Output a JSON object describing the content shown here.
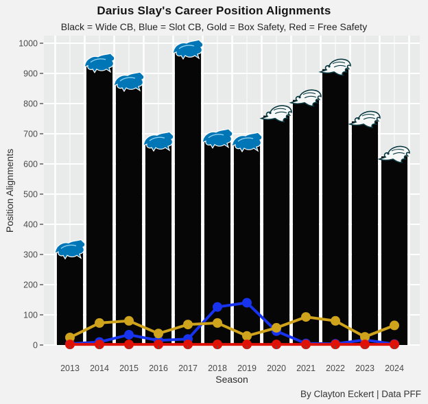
{
  "header": {
    "title": "Darius Slay's Career Position Alignments",
    "subtitle": "Black = Wide CB, Blue = Slot CB, Gold = Box Safety, Red = Free Safety"
  },
  "caption": "By Clayton Eckert | Data PFF",
  "colors": {
    "page_bg": "#f2f2f2",
    "panel_bg": "#e9eaea",
    "gridline": "#ffffff",
    "bar_black": "#060606",
    "slot_blue": "#1733EE",
    "box_gold": "#CFA31C",
    "free_red": "#E01206",
    "lions_blue": "#0076b6",
    "eagles_green": "#0a3940",
    "eagles_white": "#f6f8f8",
    "axis_text": "#4a4a4a"
  },
  "chart_data": {
    "type": "bar",
    "title": "Darius Slay's Career Position Alignments",
    "subtitle": "Black = Wide CB, Blue = Slot CB, Gold = Box Safety, Red = Free Safety",
    "xlabel": "Season",
    "ylabel": "Position Alignments",
    "ylim": [
      0,
      1025
    ],
    "yticks": [
      0,
      100,
      200,
      300,
      400,
      500,
      600,
      700,
      800,
      900,
      1000
    ],
    "grid": "white major horizontal lines, white vertical lines between bars, gray panel",
    "legend_position": "none (colors explained in subtitle)",
    "categories": [
      "2013",
      "2014",
      "2015",
      "2016",
      "2017",
      "2018",
      "2019",
      "2020",
      "2021",
      "2022",
      "2023",
      "2024"
    ],
    "series": [
      {
        "name": "Wide CB",
        "type": "bar",
        "color": "#060606",
        "values": [
          313,
          930,
          868,
          670,
          975,
          680,
          668,
          760,
          812,
          914,
          741,
          625
        ]
      },
      {
        "name": "Slot CB",
        "type": "line",
        "color": "#1733EE",
        "values": [
          4,
          10,
          34,
          15,
          20,
          126,
          140,
          46,
          5,
          4,
          17,
          3
        ]
      },
      {
        "name": "Box Safety",
        "type": "line",
        "color": "#CFA31C",
        "values": [
          25,
          73,
          80,
          38,
          68,
          73,
          30,
          57,
          93,
          80,
          27,
          65
        ]
      },
      {
        "name": "Free Safety",
        "type": "line",
        "color": "#E01206",
        "values": [
          2,
          2,
          2,
          2,
          2,
          2,
          2,
          2,
          2,
          2,
          2,
          2
        ]
      }
    ],
    "bar_logos": [
      "lions",
      "lions",
      "lions",
      "lions",
      "lions",
      "lions",
      "lions",
      "eagles",
      "eagles",
      "eagles",
      "eagles",
      "eagles"
    ],
    "logo_names": {
      "lions": "detroit-lions-logo-icon",
      "eagles": "philadelphia-eagles-logo-icon"
    }
  }
}
